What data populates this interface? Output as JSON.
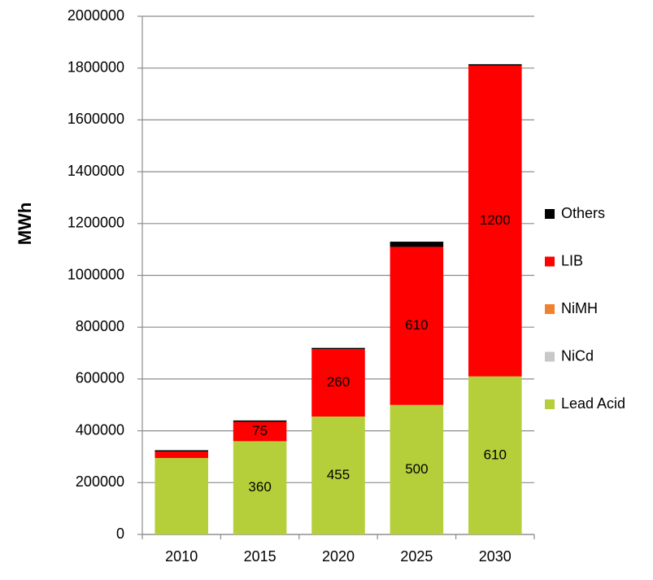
{
  "chart_data": {
    "type": "stacked_bar",
    "y_label": "MWh",
    "categories": [
      "2010",
      "2015",
      "2020",
      "2025",
      "2030"
    ],
    "series": [
      {
        "name": "Lead Acid",
        "color": "#b5cf3a",
        "values": [
          295000,
          360000,
          455000,
          500000,
          610000
        ],
        "value_labels": [
          null,
          "360",
          "455",
          "500",
          "610"
        ]
      },
      {
        "name": "NiCd",
        "color": "#c8c8c8",
        "values": [
          0,
          0,
          0,
          0,
          0
        ]
      },
      {
        "name": "NiMH",
        "color": "#f0822d",
        "values": [
          0,
          0,
          0,
          0,
          0
        ]
      },
      {
        "name": "LIB",
        "color": "#ff0000",
        "values": [
          25000,
          75000,
          260000,
          610000,
          1200000
        ],
        "value_labels": [
          null,
          "75",
          "260",
          "610",
          "1200"
        ]
      },
      {
        "name": "Others",
        "color": "#000000",
        "values": [
          5000,
          5000,
          5000,
          20000,
          5000
        ]
      }
    ],
    "ylim": [
      0,
      2000000
    ],
    "yticks": [
      0,
      200000,
      400000,
      600000,
      800000,
      1000000,
      1200000,
      1400000,
      1600000,
      1800000,
      2000000
    ],
    "grid": true,
    "legend": "right"
  }
}
